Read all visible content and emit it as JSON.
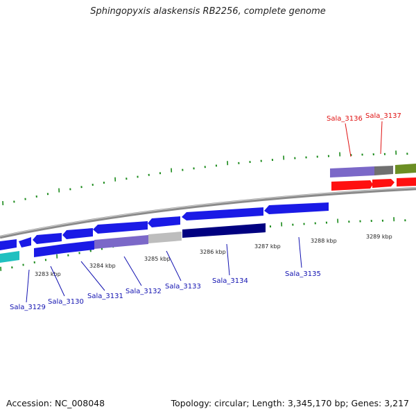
{
  "title": "Sphingopyxis alaskensis RB2256, complete genome",
  "footer": {
    "accession": "Accession: NC_008048",
    "summary": "Topology: circular; Length: 3,345,170 bp; Genes: 3,217"
  },
  "colors": {
    "blue": "#1a1ae6",
    "navy": "#000080",
    "lavender": "#7b68c8",
    "gray": "#bdbdbd",
    "darkgray": "#707070",
    "cyan": "#20c0c0",
    "red": "#ff1010",
    "olive": "#6b8e23",
    "tick": "#1a8a1a",
    "label_blue": "#1010b0",
    "label_red": "#e01010"
  },
  "kbp_labels": [
    "3283 kbp",
    "3284 kbp",
    "3285 kbp",
    "3286 kbp",
    "3287 kbp",
    "3288 kbp",
    "3289 kbp"
  ],
  "genes": [
    {
      "name": "Sala_3129",
      "color": "label_blue"
    },
    {
      "name": "Sala_3130",
      "color": "label_blue"
    },
    {
      "name": "Sala_3131",
      "color": "label_blue"
    },
    {
      "name": "Sala_3132",
      "color": "label_blue"
    },
    {
      "name": "Sala_3133",
      "color": "label_blue"
    },
    {
      "name": "Sala_3134",
      "color": "label_blue"
    },
    {
      "name": "Sala_3135",
      "color": "label_blue"
    },
    {
      "name": "Sala_3136",
      "color": "label_red"
    },
    {
      "name": "Sala_3137",
      "color": "label_red"
    }
  ]
}
